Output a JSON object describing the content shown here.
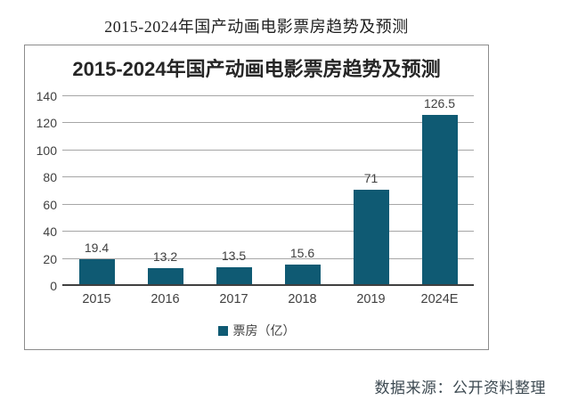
{
  "page": {
    "title": "2015-2024年国产动画电影票房趋势及预测",
    "source": "数据来源：公开资料整理"
  },
  "chart_data": {
    "type": "bar",
    "title": "2015-2024年国产动画电影票房趋势及预测",
    "categories": [
      "2015",
      "2016",
      "2017",
      "2018",
      "2019",
      "2024E"
    ],
    "values": [
      19.4,
      13.2,
      13.5,
      15.6,
      71,
      126.5
    ],
    "legend": "票房（亿）",
    "xlabel": "",
    "ylabel": "",
    "ylim": [
      0,
      140
    ],
    "ytick_step": 20,
    "yticks": [
      0,
      20,
      40,
      60,
      80,
      100,
      120,
      140
    ],
    "grid": true,
    "legend_position": "bottom"
  },
  "colors": {
    "bar": "#0f5a73",
    "gridline": "#a6a6a6",
    "baseline": "#404040",
    "box_border": "#8c8c8c",
    "text": "#404040",
    "title_text": "#262626"
  }
}
